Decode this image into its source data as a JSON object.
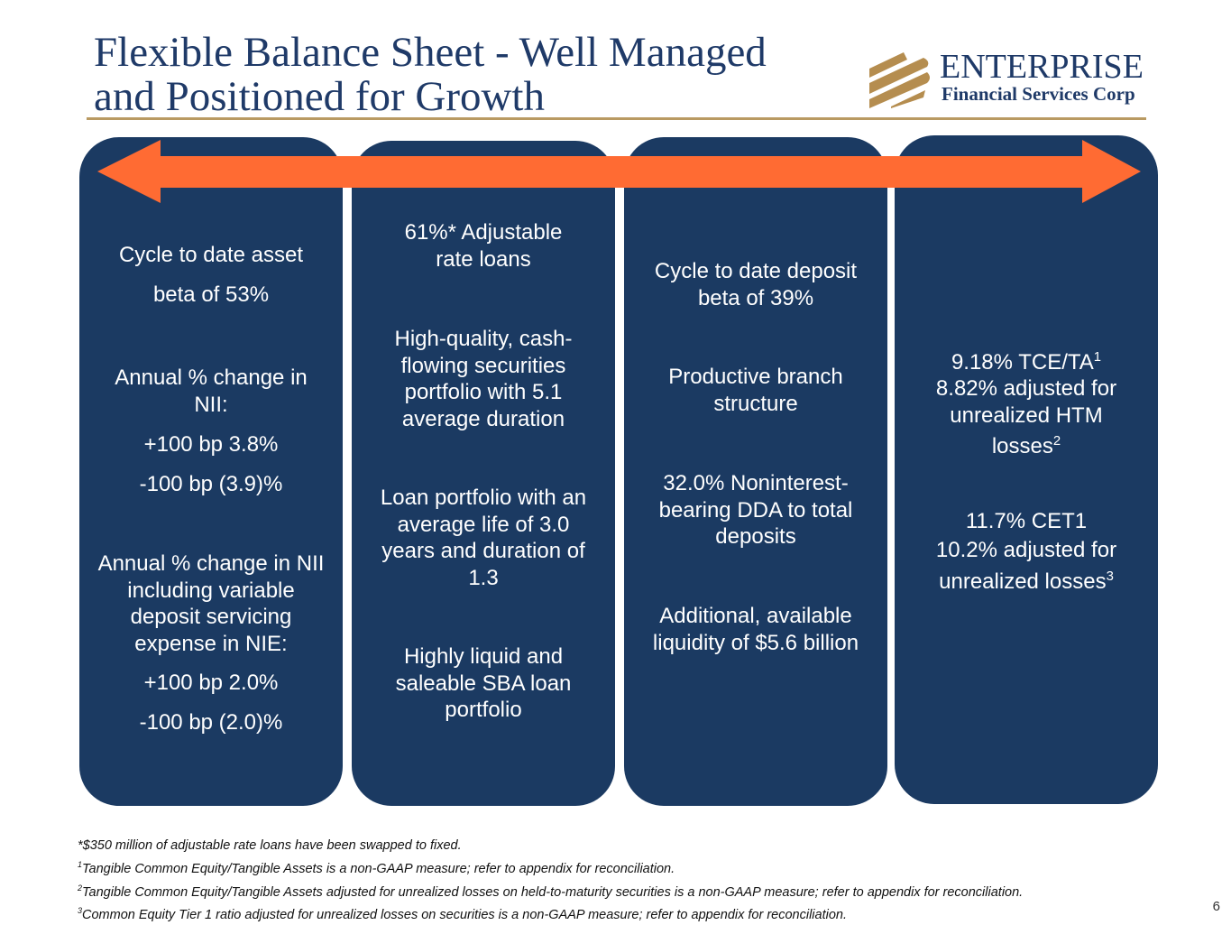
{
  "title": {
    "line1": "Flexible Balance Sheet - Well Managed",
    "line2": "and Positioned for Growth"
  },
  "logo": {
    "name": "ENTERPRISE",
    "sub": "Financial Services Corp"
  },
  "colors": {
    "navy": "#1b3a62",
    "orange": "#ff6b33",
    "gold": "#b99a62"
  },
  "columns": [
    {
      "paragraphs": [
        "Cycle to date asset",
        "beta of  53%",
        "Annual % change in NII:",
        "+100 bp 3.8%",
        "-100 bp (3.9)%",
        "Annual % change in NII including variable deposit servicing expense in NIE:",
        "+100 bp 2.0%",
        "-100 bp (2.0)%"
      ]
    },
    {
      "paragraphs": [
        "61%* Adjustable rate loans",
        "High-quality, cash-flowing securities portfolio with 5.1 average duration",
        "Loan portfolio with an average life of 3.0 years and duration of 1.3",
        "Highly liquid and saleable SBA loan portfolio"
      ]
    },
    {
      "paragraphs": [
        "Cycle to date deposit beta of 39%",
        "Productive branch structure",
        "32.0% Noninterest-bearing DDA to total deposits",
        "Additional, available liquidity of $5.6 billion"
      ]
    },
    {
      "paragraphs": [
        "9.18% TCE/TA",
        "1",
        "8.82% adjusted for unrealized HTM losses",
        "2",
        "11.7% CET1",
        "10.2% adjusted for unrealized losses",
        "3"
      ]
    }
  ],
  "footnotes": [
    {
      "mark": "",
      "text": "*$350 million of adjustable rate loans have been swapped to fixed."
    },
    {
      "mark": "1",
      "text": "Tangible Common Equity/Tangible Assets is a non-GAAP measure; refer to appendix for reconciliation."
    },
    {
      "mark": "2",
      "text": "Tangible Common Equity/Tangible Assets adjusted for unrealized losses on held-to-maturity securities is a non-GAAP measure; refer to appendix for reconciliation."
    },
    {
      "mark": "3",
      "text": "Common Equity Tier 1 ratio adjusted for unrealized losses on securities is a non-GAAP measure; refer to appendix for reconciliation."
    }
  ],
  "page_number": "6"
}
